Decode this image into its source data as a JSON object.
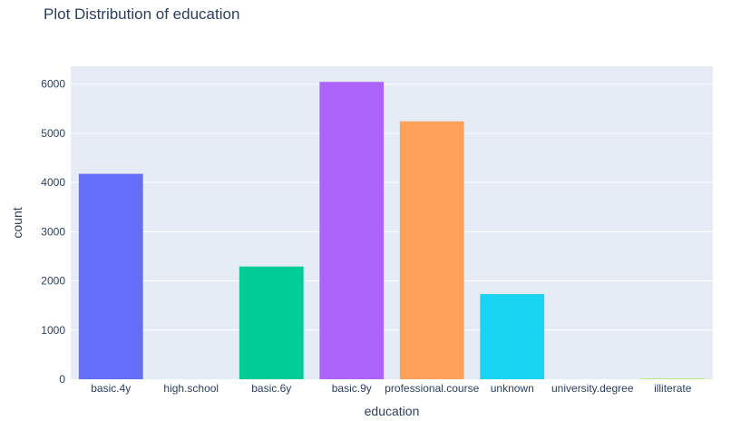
{
  "chart_data": {
    "type": "bar",
    "title": "Plot Distribution of education",
    "xlabel": "education",
    "ylabel": "count",
    "categories": [
      "basic.4y",
      "high.school",
      "basic.6y",
      "basic.9y",
      "professional.course",
      "unknown",
      "university.degree",
      "illiterate"
    ],
    "values": [
      4176,
      0,
      2292,
      6045,
      5243,
      1731,
      0,
      18
    ],
    "colors": [
      "#636efa",
      "#EF553B",
      "#00cc96",
      "#ab63fa",
      "#FFA15A",
      "#19d3f3",
      "#FF6692",
      "#B6E880"
    ],
    "yticks": [
      0,
      1000,
      2000,
      3000,
      4000,
      5000,
      6000
    ],
    "ylim": [
      0,
      6363
    ],
    "grid": true,
    "plot_bgcolor": "#e5ecf6"
  }
}
